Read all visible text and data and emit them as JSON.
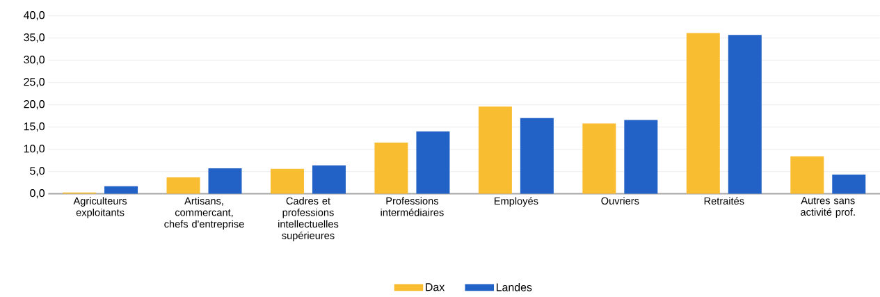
{
  "chart_data": {
    "type": "bar",
    "categories": [
      "Agriculteurs exploitants",
      "Artisans, commercant, chefs d'entreprise",
      "Cadres et professions intellectuelles supérieures",
      "Professions intermédiaires",
      "Employés",
      "Ouvriers",
      "Retraités",
      "Autres sans activité prof."
    ],
    "series": [
      {
        "name": "Dax",
        "color": "#f9bd32",
        "values": [
          0.3,
          3.7,
          5.6,
          11.5,
          19.6,
          15.8,
          36.1,
          8.4
        ]
      },
      {
        "name": "Landes",
        "color": "#2262c6",
        "values": [
          1.7,
          5.7,
          6.4,
          14.0,
          17.0,
          16.6,
          35.7,
          4.3
        ]
      }
    ],
    "ylim": [
      0,
      40
    ],
    "yticks": [
      {
        "value": 0,
        "label": "0,0"
      },
      {
        "value": 5,
        "label": "5,0"
      },
      {
        "value": 10,
        "label": "10,0"
      },
      {
        "value": 15,
        "label": "15,0"
      },
      {
        "value": 20,
        "label": "20,0"
      },
      {
        "value": 25,
        "label": "25,0"
      },
      {
        "value": 30,
        "label": "30,0"
      },
      {
        "value": 35,
        "label": "35,0"
      },
      {
        "value": 40,
        "label": "40,0"
      }
    ],
    "grid": "y",
    "legend": "bottom"
  }
}
